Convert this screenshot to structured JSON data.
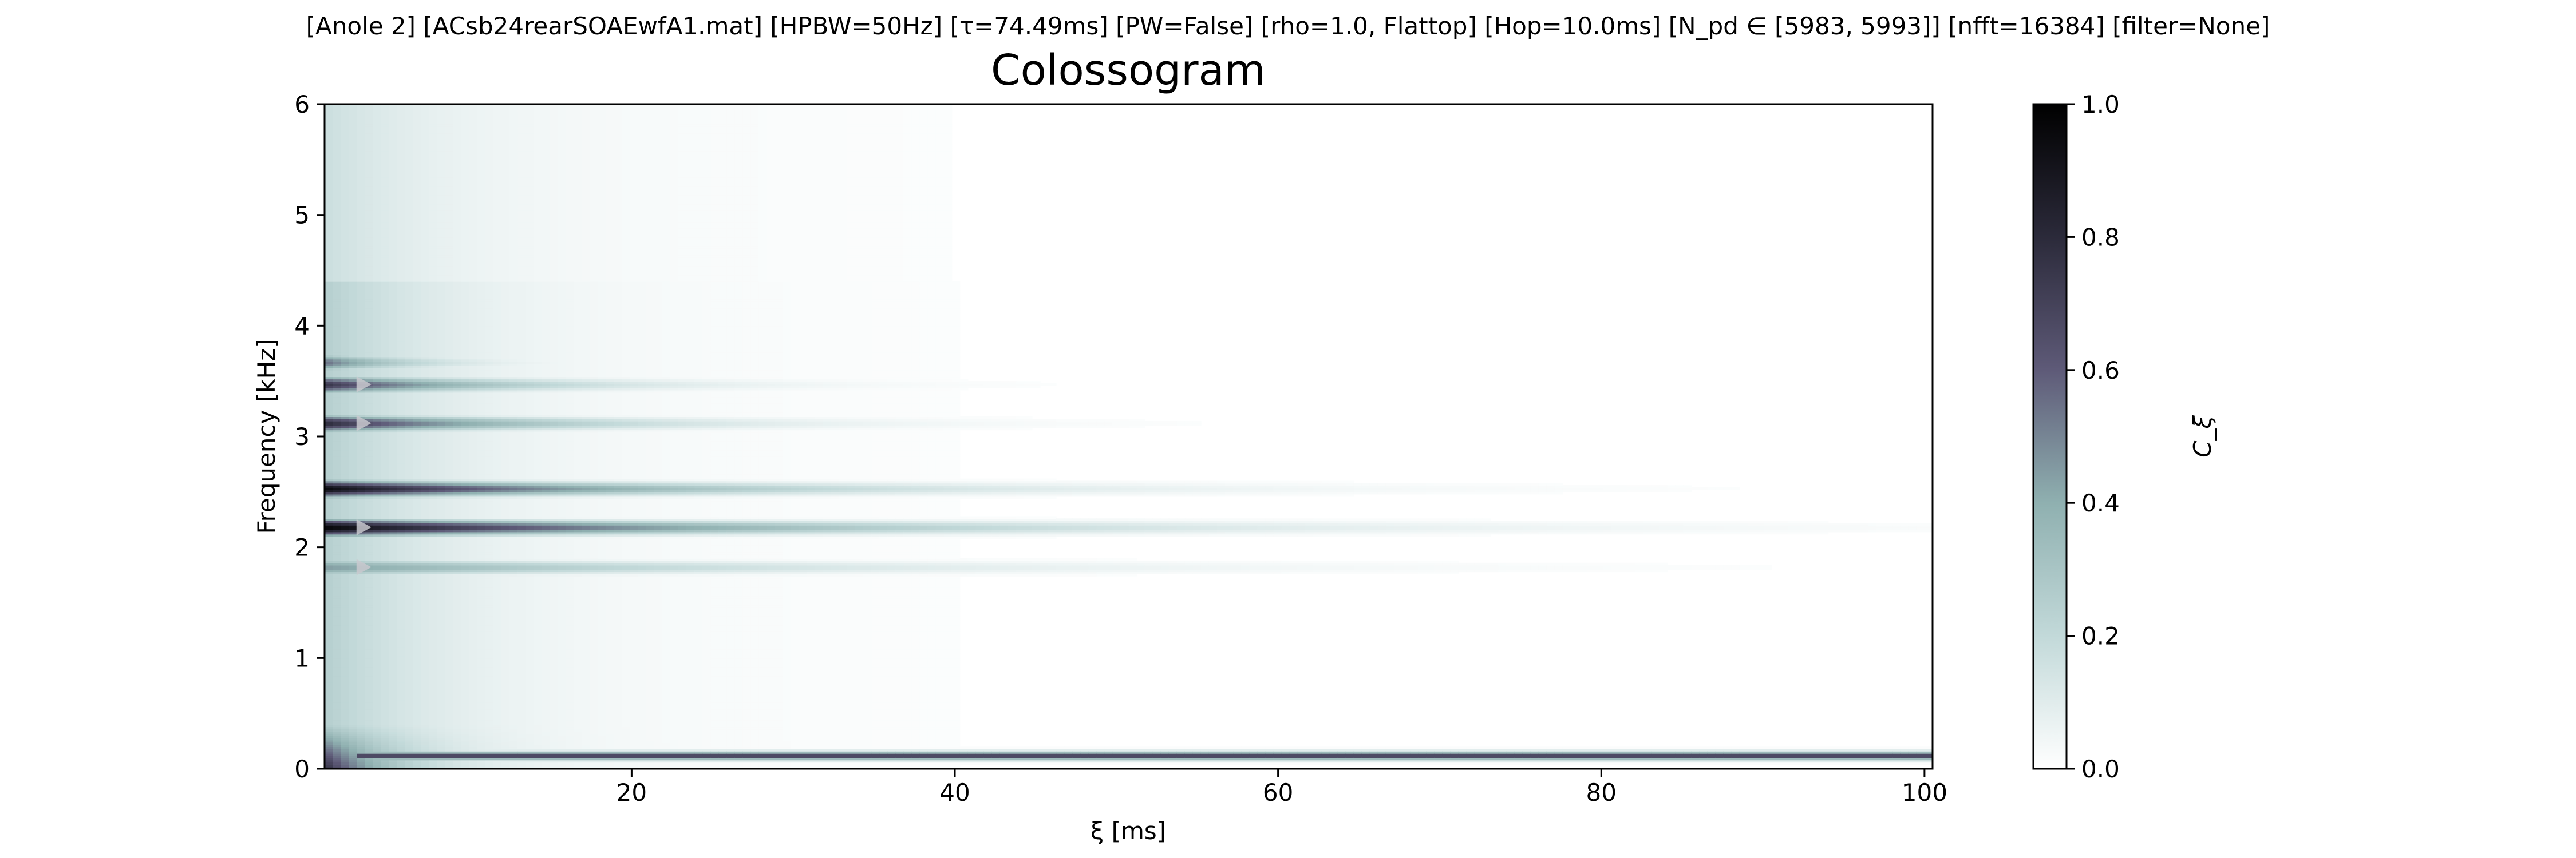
{
  "header": {
    "info_line": "[Anole 2]   [ACsb24rearSOAEwfA1.mat]   [HPBW=50Hz]   [τ=74.49ms]   [PW=False]   [rho=1.0, Flattop]   [Hop=10.0ms]   [N_pd ∈ [5983, 5993]]   [nfft=16384]   [filter=None]"
  },
  "chart_data": {
    "type": "heatmap",
    "title": "Colossogram",
    "xlabel": "ξ [ms]",
    "ylabel": "Frequency [kHz]",
    "xlim": [
      1,
      100.5
    ],
    "ylim": [
      0,
      6
    ],
    "x_ticks": [
      20,
      40,
      60,
      80,
      100
    ],
    "y_ticks": [
      0,
      1,
      2,
      3,
      4,
      5,
      6
    ],
    "colorbar": {
      "label": "C_ξ",
      "range": [
        0.0,
        1.0
      ],
      "ticks": [
        "0.0",
        "0.2",
        "0.4",
        "0.6",
        "0.8",
        "1.0"
      ],
      "colormap": "bone_r",
      "colormap_stops": [
        "#ffffff",
        "#c2d9d9",
        "#8fb0b0",
        "#5e5a78",
        "#2b2a3a",
        "#000000"
      ]
    },
    "peak_bands_khz": [
      {
        "freq": 3.67,
        "peak": 0.55,
        "decay_ms": 6
      },
      {
        "freq": 3.47,
        "peak": 0.75,
        "decay_ms": 11
      },
      {
        "freq": 3.12,
        "peak": 0.8,
        "decay_ms": 13
      },
      {
        "freq": 2.53,
        "peak": 0.95,
        "decay_ms": 20
      },
      {
        "freq": 2.18,
        "peak": 0.98,
        "decay_ms": 26
      },
      {
        "freq": 1.82,
        "peak": 0.45,
        "decay_ms": 25
      },
      {
        "freq": 0.12,
        "peak": 0.85,
        "decay_ms": 100
      }
    ],
    "markers_khz": [
      3.47,
      3.12,
      2.18,
      1.82
    ]
  }
}
